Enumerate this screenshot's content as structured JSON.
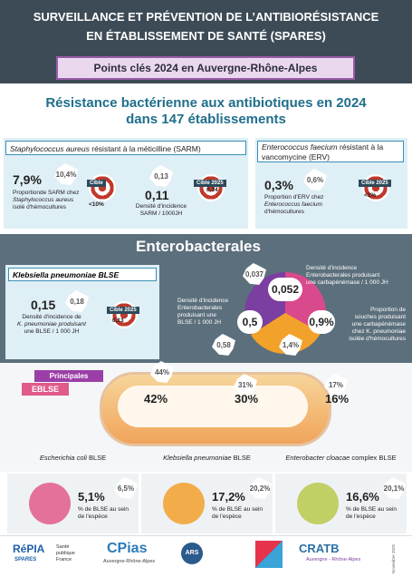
{
  "header": {
    "title_lines": [
      "SURVEILLANCE ET PRÉVENTION DE L’ANTIBIORÉSISTANCE",
      "EN ÉTABLISSEMENT DE SANTÉ (SPARES)"
    ],
    "subtitle": "Points clés 2024 en Auvergne-Rhône-Alpes"
  },
  "resistance": {
    "title_lines": [
      "Résistance bactérienne aux antibiotiques en 2024",
      "dans 147 établissements"
    ],
    "sarm": {
      "title_italic": "Staphylococcus aureus",
      "title_rest": " résistant à la méticilline (SARM)",
      "proportion": {
        "value": "7,9%",
        "france": "10,4%",
        "label_lines": [
          "Proportionde SARM chez",
          "Staphylococcus aureus",
          "isolé d'hémocultures"
        ],
        "target_label": "Cible",
        "target": "<10%"
      },
      "density": {
        "value": "0,11",
        "france": "0,13",
        "label_lines": [
          "Densité d'incidence",
          "SARM / 1000JH"
        ],
        "target_label": "Cible 2025",
        "target": "0,14"
      }
    },
    "erv": {
      "title_italic": "Enterococcus faecium",
      "title_rest": " résistant à la vancomycine (ERV)",
      "proportion": {
        "value": "0,3%",
        "france": "0,6%",
        "label_lines": [
          "Proportion d'ERV chez",
          "Enterococcus faecium",
          "d'hémocultures"
        ],
        "target_label": "Cible 2025",
        "target": "<1%"
      }
    }
  },
  "enterobacterales": {
    "title": "Enterobacterales",
    "kp": {
      "title": "Klebsiella pneumoniae BLSE",
      "value": "0,15",
      "france": "0,18",
      "label_lines": [
        "Densité d'incidence de",
        "K. pneumoniae produisant",
        "une BLSE / 1 000 JH"
      ],
      "target_label": "Cible 2025",
      "target": "0,13"
    },
    "epc": {
      "value": "0,052",
      "france": "0,037",
      "label_lines": [
        "Densité d'incidence",
        "Enterobacterales produisant",
        "une carbapénémase / 1 000 JH"
      ]
    },
    "eblse": {
      "value": "0,5",
      "france": "0,58",
      "label_lines": [
        "Densité d'incidence",
        "Enterobacterales",
        "produisant une",
        "BLSE / 1 000 JH"
      ]
    },
    "kp_carba": {
      "value": "0,9%",
      "france": "1,4%",
      "label_lines": [
        "Proportion de",
        "souches produisant",
        "une carbapénémase",
        "chez K. pneumoniae",
        "isolée d'hémocultures"
      ]
    }
  },
  "eblse": {
    "badge": "Principales",
    "badge2": "EBLSE",
    "species": [
      {
        "share": "42%",
        "share_france": "44%",
        "name_italic": "Escherichia coli",
        "name_rest": " BLSE",
        "rate": "5,1%",
        "rate_france": "6,5%",
        "rate_label_lines": [
          "% de BLSE au sein",
          "de l'espèce"
        ]
      },
      {
        "share": "30%",
        "share_france": "31%",
        "name_italic": "Klebsiella pneumoniae",
        "name_rest": " BLSE",
        "rate": "17,2%",
        "rate_france": "20,2%",
        "rate_label_lines": [
          "% de BLSE au sein",
          "de l'espèce"
        ]
      },
      {
        "share": "16%",
        "share_france": "17%",
        "name_italic": "Enterobacter cloacae",
        "name_rest": " complex BLSE",
        "rate": "16,6%",
        "rate_france": "20,1%",
        "rate_label_lines": [
          "% de BLSE au sein",
          "de l'espèce"
        ]
      }
    ]
  },
  "footer": {
    "logos": [
      "RéPIA",
      "SPARES",
      "Santé publique France",
      "CPias",
      "Auvergne-Rhône-Alpes",
      "ARS",
      "CRATB",
      "Auvergne - Rhône-Alpes"
    ],
    "date": "Novembre 2025"
  }
}
